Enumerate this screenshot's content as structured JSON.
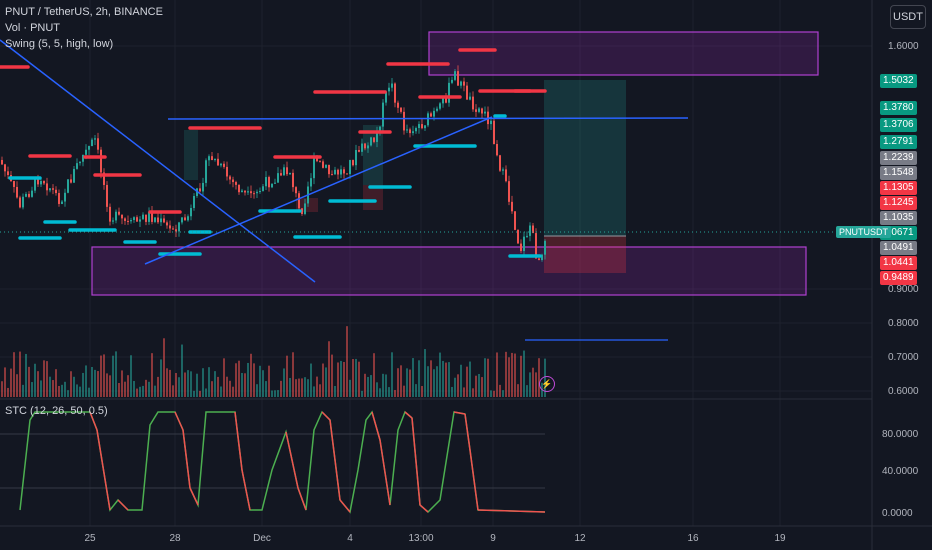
{
  "header": {
    "title": "PNUT / TetherUS, 2h, BINANCE",
    "vol_label": "Vol · PNUT",
    "swing_label": "Swing (5, 5, high, low)",
    "currency": "USDT"
  },
  "stc": {
    "label": "STC (12, 26, 50, 0.5)",
    "ticks": [
      "80.0000",
      "40.0000",
      "0.0000"
    ]
  },
  "price_axis": {
    "ticks": [
      "1.6000",
      "0.9000",
      "0.8000",
      "0.7000",
      "0.6000"
    ],
    "badges": [
      {
        "label": "1.5032",
        "color": "#089981"
      },
      {
        "label": "1.3780",
        "color": "#089981"
      },
      {
        "label": "1.3706",
        "color": "#089981"
      },
      {
        "label": "1.2791",
        "color": "#089981"
      },
      {
        "label": "1.2239",
        "color": "#787b86"
      },
      {
        "label": "1.1548",
        "color": "#787b86"
      },
      {
        "label": "1.1305",
        "color": "#f23645"
      },
      {
        "label": "1.1245",
        "color": "#f23645"
      },
      {
        "label": "1.1035",
        "color": "#787b86"
      },
      {
        "label": "1.0671",
        "color": "#089981"
      },
      {
        "label": "1.0491",
        "color": "#787b86"
      },
      {
        "label": "1.0441",
        "color": "#f23645"
      },
      {
        "label": "0.9489",
        "color": "#f23645"
      }
    ],
    "symbol_tag": "PNUTUSDT"
  },
  "time_axis": {
    "ticks": [
      "25",
      "28",
      "Dec",
      "4",
      "13:00",
      "9",
      "12",
      "16",
      "19"
    ]
  },
  "colors": {
    "up": "#26a69a",
    "down": "#ef5350",
    "trend": "#2962ff",
    "zone": "#9c27b0",
    "swing_high": "#f23645",
    "swing_low": "#00bcd4"
  }
}
